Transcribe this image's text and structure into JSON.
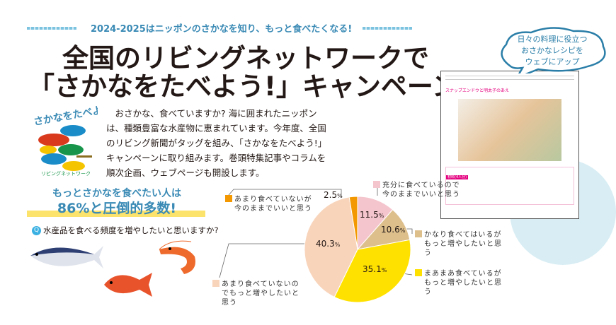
{
  "header": {
    "tagline": "2024-2025はニッポンのさかなを知り、もっと食べたくなる!",
    "title_line1": "全国のリビングネットワークで",
    "title_line2": "「さかなをたべよう!」キャンペーン"
  },
  "logo": {
    "text": "さかなをたべよう!",
    "subtext": "リビングネットワーク"
  },
  "intro": "おさかな、食べていますか? 海に囲まれたニッポンは、種類豊富な水産物に恵まれています。今年度、全国のリビング新聞がタッグを組み、「さかなをたべよう!」キャンペーンに取り組みます。巻頭特集記事やコラムを順次企画、ウェブページも開設します。",
  "highlight": {
    "line1": "もっとさかなを食べたい人は",
    "line2": "86%と圧倒的多数!"
  },
  "question": {
    "badge": "Q",
    "text": "水産品を食べる頻度を増やしたいと思いますか?"
  },
  "bubble": {
    "line1": "日々の料理に役立つ",
    "line2": "おさかなレシピを",
    "line3": "ウェブにアップ"
  },
  "recipe": {
    "title": "スナップエンドウと明太子のあえ",
    "ingredients_label": "材料(4人分)"
  },
  "chart_data": {
    "type": "pie",
    "start": "top",
    "direction": "clockwise",
    "slices": [
      {
        "label": "充分に食べているので今のままでいいと思う",
        "value": 11.5,
        "display": "11.5",
        "color": "#f5c5cd"
      },
      {
        "label": "かなり食べてはいるがもっと増やしたいと思う",
        "value": 10.6,
        "display": "10.6",
        "color": "#ddbf8c"
      },
      {
        "label": "まあまあ食べているがもっと増やしたいと思う",
        "value": 35.1,
        "display": "35.1",
        "color": "#ffe100"
      },
      {
        "label": "あまり食べていないのでもっと増やしたいと思う",
        "value": 40.3,
        "display": "40.3",
        "color": "#f8d4bb"
      },
      {
        "label": "あまり食べていないが今のままでいいと思う",
        "value": 2.5,
        "display": "2.5",
        "color": "#f39800"
      }
    ],
    "unit": "%"
  }
}
